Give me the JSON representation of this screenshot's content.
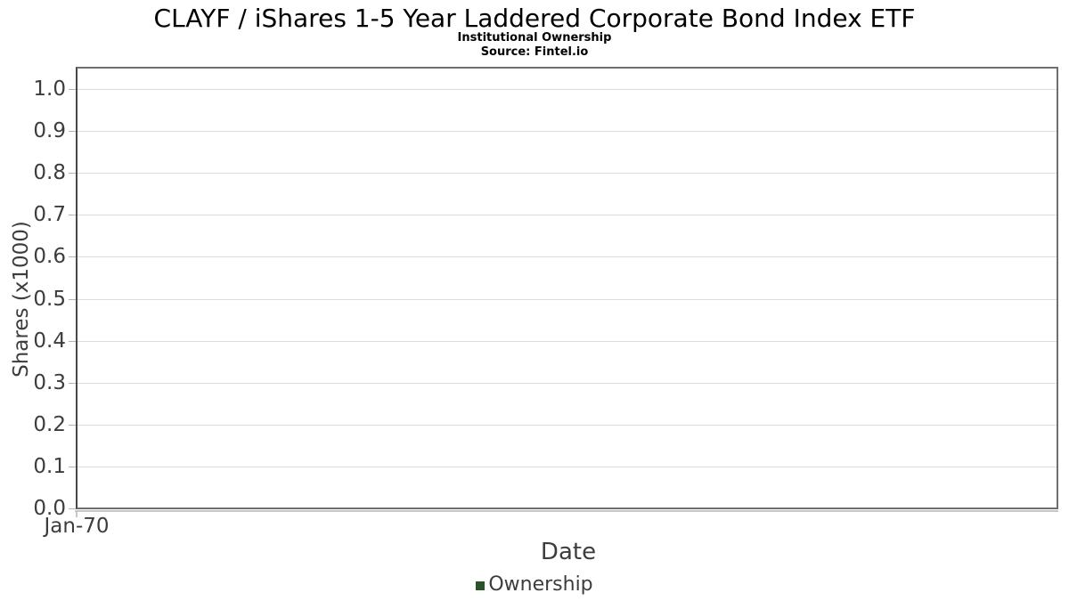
{
  "chart_data": {
    "type": "line",
    "title": "CLAYF / iShares 1-5 Year Laddered Corporate Bond Index ETF",
    "subtitle": "Institutional Ownership",
    "source": "Source: Fintel.io",
    "xlabel": "Date",
    "ylabel": "Shares (x1000)",
    "x_tick_labels": [
      "Jan-70"
    ],
    "y_tick_labels": [
      "0.0",
      "0.1",
      "0.2",
      "0.3",
      "0.4",
      "0.5",
      "0.6",
      "0.7",
      "0.8",
      "0.9",
      "1.0"
    ],
    "ylim": [
      0.0,
      1.05
    ],
    "grid": true,
    "legend_position": "bottom",
    "series": [
      {
        "name": "Ownership",
        "color": "#2a5329",
        "x": [],
        "values": []
      }
    ]
  }
}
